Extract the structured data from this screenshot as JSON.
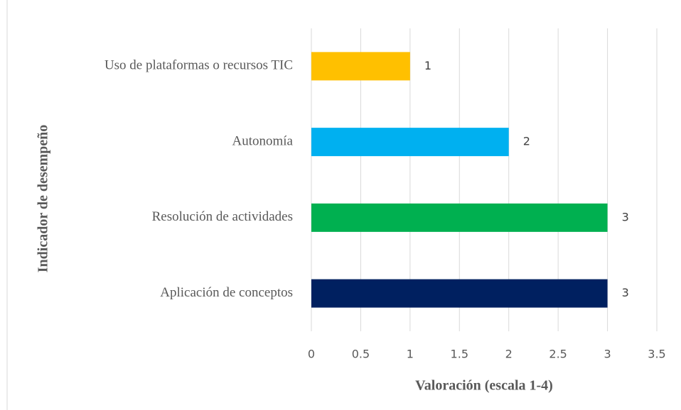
{
  "chart_data": {
    "type": "bar",
    "orientation": "horizontal",
    "x_label": "Valoración  (escala 1-4)",
    "y_label": "Indicador  de desempeño",
    "categories": [
      "Aplicación de conceptos",
      "Resolución de actividades",
      "Autonomía",
      "Uso de plataformas o recursos TIC"
    ],
    "values": [
      3,
      3,
      2,
      1
    ],
    "colors": [
      "#002060",
      "#00b050",
      "#00b0f0",
      "#ffc000"
    ],
    "xlim": [
      0,
      3.5
    ],
    "xticks": [
      0,
      0.5,
      1,
      1.5,
      2,
      2.5,
      3,
      3.5
    ],
    "grid": true
  }
}
